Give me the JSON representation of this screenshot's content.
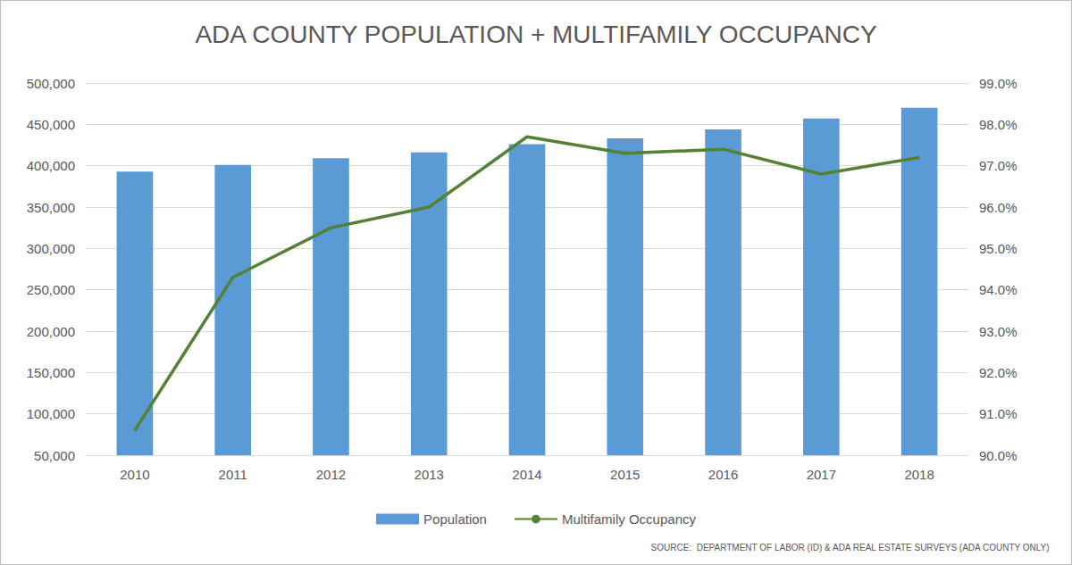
{
  "chart_data": {
    "type": "bar",
    "title": "ADA COUNTY POPULATION + MULTIFAMILY OCCUPANCY",
    "annotation": "SOURCE:  DEPARTMENT OF LABOR (ID) & ADA REAL ESTATE SURVEYS (ADA COUNTY ONLY)",
    "categories": [
      "2010",
      "2011",
      "2012",
      "2013",
      "2014",
      "2015",
      "2016",
      "2017",
      "2018"
    ],
    "series": [
      {
        "name": "Population",
        "type": "bar",
        "color": "#5b9bd5",
        "values": [
          393000,
          401000,
          409000,
          416000,
          426000,
          433000,
          444000,
          457000,
          470000
        ]
      },
      {
        "name": "Multifamily Occupancy",
        "type": "line",
        "axis": "y2",
        "color": "#538135",
        "marker": "none",
        "values": [
          90.6,
          94.3,
          95.5,
          96.0,
          97.7,
          97.3,
          97.4,
          96.8,
          97.2
        ]
      }
    ],
    "ylim": [
      50000,
      500000
    ],
    "yticks": [
      {
        "value": 50000,
        "label": "50,000"
      },
      {
        "value": 100000,
        "label": "100,000"
      },
      {
        "value": 150000,
        "label": "150,000"
      },
      {
        "value": 200000,
        "label": "200,000"
      },
      {
        "value": 250000,
        "label": "250,000"
      },
      {
        "value": 300000,
        "label": "300,000"
      },
      {
        "value": 350000,
        "label": "350,000"
      },
      {
        "value": 400000,
        "label": "400,000"
      },
      {
        "value": 450000,
        "label": "450,000"
      },
      {
        "value": 500000,
        "label": "500,000"
      }
    ],
    "y2lim": [
      90,
      99
    ],
    "y2ticks": [
      {
        "value": 90,
        "label": "90.0%"
      },
      {
        "value": 91,
        "label": "91.0%"
      },
      {
        "value": 92,
        "label": "92.0%"
      },
      {
        "value": 93,
        "label": "93.0%"
      },
      {
        "value": 94,
        "label": "94.0%"
      },
      {
        "value": 95,
        "label": "95.0%"
      },
      {
        "value": 96,
        "label": "96.0%"
      },
      {
        "value": 97,
        "label": "97.0%"
      },
      {
        "value": 98,
        "label": "98.0%"
      },
      {
        "value": 99,
        "label": "99.0%"
      }
    ],
    "grid": true,
    "legend": "bottom"
  }
}
